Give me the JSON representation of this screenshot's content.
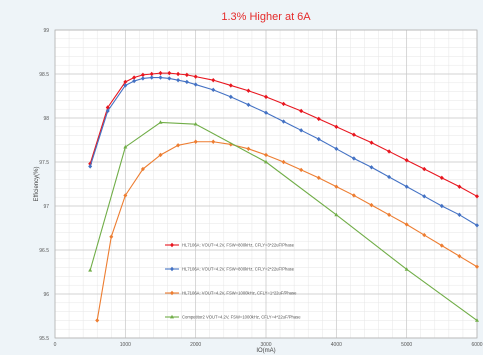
{
  "chart_data": {
    "type": "line",
    "title": "1.3% Higher at 6A",
    "xlabel": "IO(mA)",
    "ylabel": "Efficiency(%)",
    "xlim": [
      0,
      6000
    ],
    "ylim": [
      95.5,
      99
    ],
    "x_ticks": [
      0,
      1000,
      2000,
      3000,
      4000,
      5000,
      6000
    ],
    "y_ticks": [
      95.5,
      96,
      96.5,
      97,
      97.5,
      98,
      98.5,
      99
    ],
    "x_tick_labels": [
      "0",
      "1000",
      "2000",
      "3000",
      "4000",
      "5000",
      "6000"
    ],
    "y_tick_labels": [
      "95.5",
      "96",
      "96.5",
      "97",
      "97.5",
      "98",
      "98.5",
      "99"
    ],
    "grid": true,
    "legend_position": "lower-left",
    "series": [
      {
        "name": "HL7106A: VOUT=4.2V, FSW=800kHz, CFLY=3*22uF/Phase",
        "color": "#e8161f",
        "marker": "diamond",
        "x": [
          500,
          750,
          1000,
          1125,
          1250,
          1375,
          1500,
          1625,
          1750,
          1875,
          2000,
          2250,
          2500,
          2750,
          3000,
          3250,
          3500,
          3750,
          4000,
          4250,
          4500,
          4750,
          5000,
          5250,
          5500,
          5750,
          6000
        ],
        "y": [
          97.48,
          98.12,
          98.41,
          98.46,
          98.49,
          98.5,
          98.51,
          98.51,
          98.5,
          98.49,
          98.47,
          98.43,
          98.37,
          98.31,
          98.24,
          98.16,
          98.08,
          97.99,
          97.9,
          97.81,
          97.72,
          97.62,
          97.52,
          97.42,
          97.32,
          97.22,
          97.11
        ]
      },
      {
        "name": "HL7106A: VOUT=4.2V, FSW=800kHz, CFLY=2*22uF/Phase",
        "color": "#4472c4",
        "marker": "diamond",
        "x": [
          500,
          750,
          1000,
          1125,
          1250,
          1375,
          1500,
          1625,
          1750,
          1875,
          2000,
          2250,
          2500,
          2750,
          3000,
          3250,
          3500,
          3750,
          4000,
          4250,
          4500,
          4750,
          5000,
          5250,
          5500,
          5750,
          6000
        ],
        "y": [
          97.45,
          98.08,
          98.37,
          98.42,
          98.45,
          98.46,
          98.46,
          98.45,
          98.43,
          98.41,
          98.38,
          98.32,
          98.24,
          98.15,
          98.06,
          97.96,
          97.86,
          97.76,
          97.65,
          97.54,
          97.44,
          97.33,
          97.22,
          97.11,
          97.0,
          96.9,
          96.78
        ]
      },
      {
        "name": "HL7106A: VOUT=4.2V, FSW=1000kHz, CFLY=1*22uF/Phase",
        "color": "#ed7d31",
        "marker": "diamond",
        "x": [
          600,
          800,
          1000,
          1250,
          1500,
          1750,
          2000,
          2250,
          2500,
          2750,
          3000,
          3250,
          3500,
          3750,
          4000,
          4250,
          4500,
          4750,
          5000,
          5250,
          5500,
          5750,
          6000
        ],
        "y": [
          95.7,
          96.65,
          97.12,
          97.42,
          97.58,
          97.69,
          97.73,
          97.73,
          97.7,
          97.65,
          97.58,
          97.5,
          97.41,
          97.32,
          97.22,
          97.12,
          97.01,
          96.9,
          96.79,
          96.67,
          96.55,
          96.43,
          96.31
        ]
      },
      {
        "name": "Competitor2 VOUT=4.2V, FSW=1000kHz, CFLY=4*22uF/Phase",
        "color": "#70ad47",
        "marker": "triangle",
        "x": [
          500,
          1000,
          1500,
          2000,
          3000,
          4000,
          5000,
          6000
        ],
        "y": [
          96.27,
          97.67,
          97.95,
          97.93,
          97.5,
          96.9,
          96.28,
          95.7
        ]
      }
    ]
  }
}
